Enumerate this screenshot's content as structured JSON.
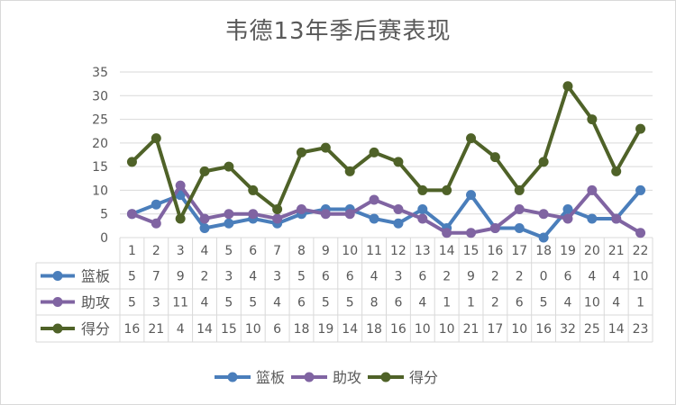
{
  "chart_data": {
    "type": "line",
    "title": "韦德13年季后赛表现",
    "categories": [
      "1",
      "2",
      "3",
      "4",
      "5",
      "6",
      "7",
      "8",
      "9",
      "10",
      "11",
      "12",
      "13",
      "14",
      "15",
      "16",
      "17",
      "18",
      "19",
      "20",
      "21",
      "22"
    ],
    "ylim": [
      0,
      35
    ],
    "yticks": [
      "0",
      "5",
      "10",
      "15",
      "20",
      "25",
      "30",
      "35"
    ],
    "grid": "horizontal",
    "legend_placement": "bottom",
    "data_table": true,
    "series": [
      {
        "name": "篮板",
        "color": "#4a7ebb",
        "values": [
          5,
          7,
          9,
          2,
          3,
          4,
          3,
          5,
          6,
          6,
          4,
          3,
          6,
          2,
          9,
          2,
          2,
          0,
          6,
          4,
          4,
          10
        ]
      },
      {
        "name": "助攻",
        "color": "#8064a2",
        "values": [
          5,
          3,
          11,
          4,
          5,
          5,
          4,
          6,
          5,
          5,
          8,
          6,
          4,
          1,
          1,
          2,
          6,
          5,
          4,
          10,
          4,
          1
        ]
      },
      {
        "name": "得分",
        "color": "#4f6228",
        "values": [
          16,
          21,
          4,
          14,
          15,
          10,
          6,
          18,
          19,
          14,
          18,
          16,
          10,
          10,
          21,
          17,
          10,
          16,
          32,
          25,
          14,
          23
        ]
      }
    ]
  }
}
